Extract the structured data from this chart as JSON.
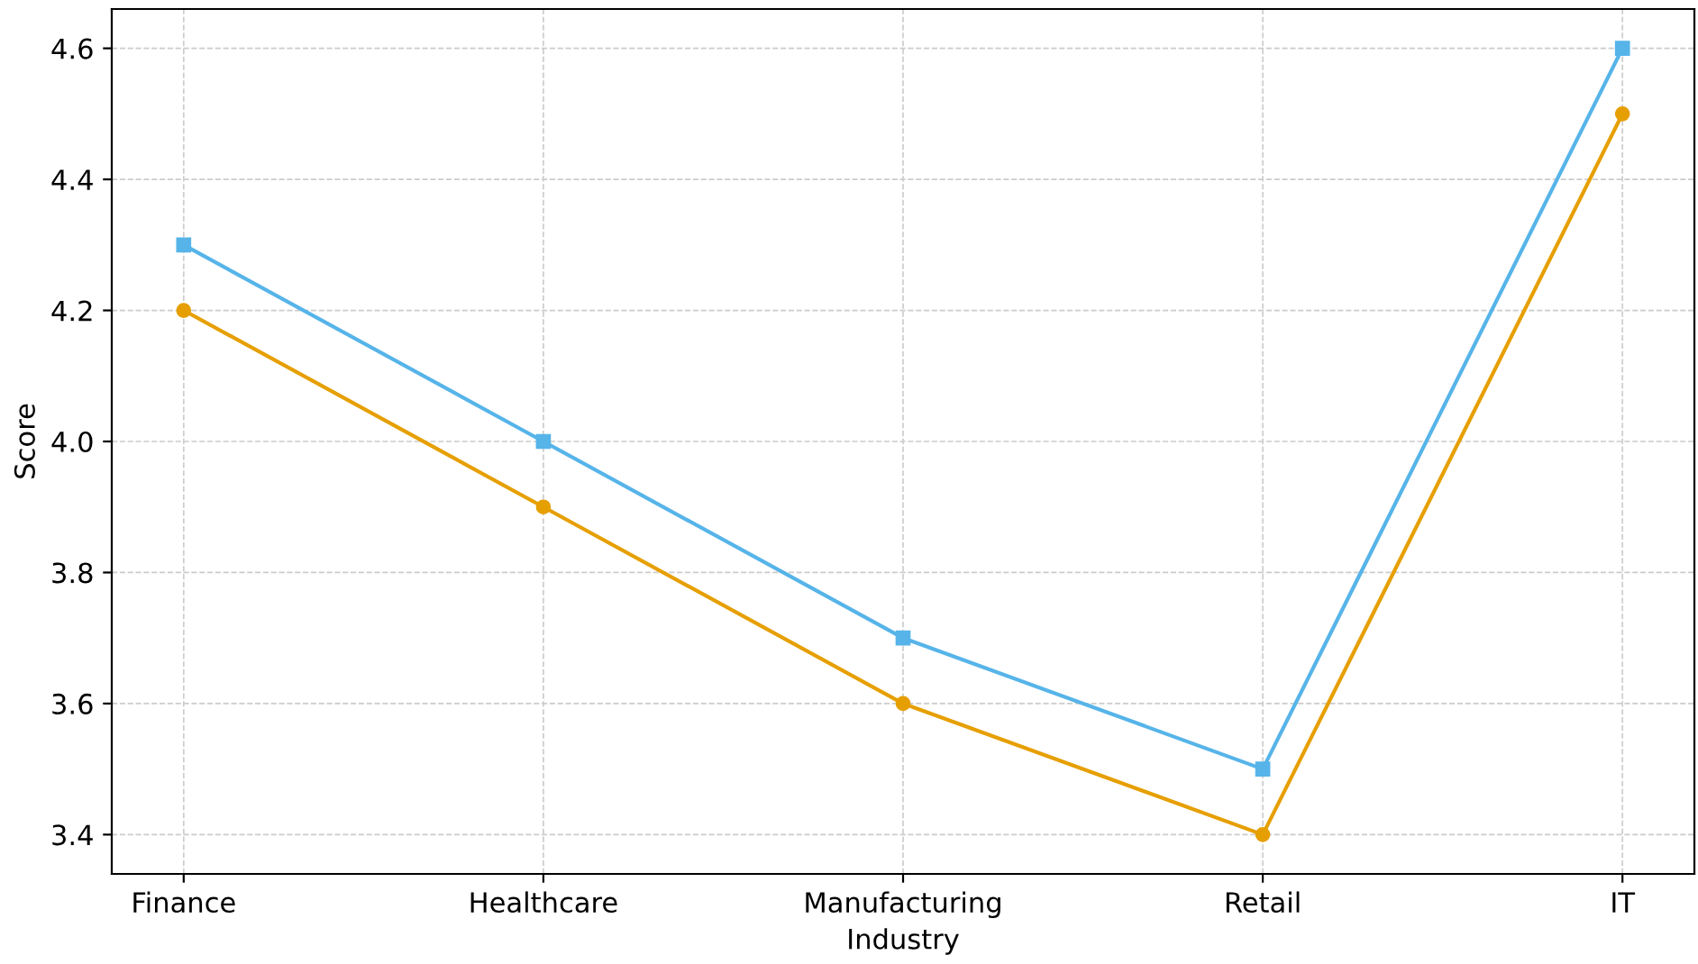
{
  "chart_data": {
    "type": "line",
    "xlabel": "Industry",
    "ylabel": "Score",
    "categories": [
      "Finance",
      "Healthcare",
      "Manufacturing",
      "Retail",
      "IT"
    ],
    "series": [
      {
        "color": "#56b4e9",
        "marker": "square",
        "values": [
          4.3,
          4.0,
          3.7,
          3.5,
          4.6
        ]
      },
      {
        "color": "#e69f00",
        "marker": "circle",
        "values": [
          4.2,
          3.9,
          3.6,
          3.4,
          4.5
        ]
      }
    ],
    "ylim": [
      3.34,
      4.66
    ],
    "yticks": [
      3.4,
      3.6,
      3.8,
      {
        "value": 4,
        "label": "4.0"
      },
      4.2,
      4.4,
      4.6
    ],
    "grid": true,
    "legend": false,
    "line_style": "solid"
  }
}
